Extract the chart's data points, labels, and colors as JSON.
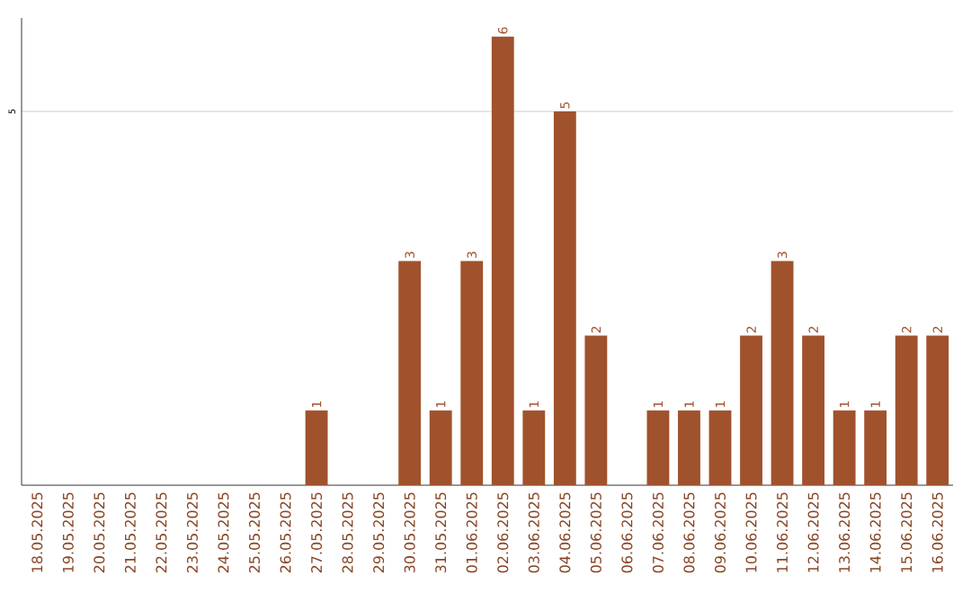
{
  "chart_data": {
    "type": "bar",
    "categories": [
      "18.05.2025",
      "19.05.2025",
      "20.05.2025",
      "21.05.2025",
      "22.05.2025",
      "23.05.2025",
      "24.05.2025",
      "25.05.2025",
      "26.05.2025",
      "27.05.2025",
      "28.05.2025",
      "29.05.2025",
      "30.05.2025",
      "31.05.2025",
      "01.06.2025",
      "02.06.2025",
      "03.06.2025",
      "04.06.2025",
      "05.06.2025",
      "06.06.2025",
      "07.06.2025",
      "08.06.2025",
      "09.06.2025",
      "10.06.2025",
      "11.06.2025",
      "12.06.2025",
      "13.06.2025",
      "14.06.2025",
      "15.06.2025",
      "16.06.2025"
    ],
    "values": [
      0,
      0,
      0,
      0,
      0,
      0,
      0,
      0,
      0,
      1,
      0,
      0,
      3,
      1,
      3,
      6,
      1,
      5,
      2,
      0,
      1,
      1,
      1,
      2,
      3,
      2,
      1,
      1,
      2,
      2
    ],
    "value_labels": [
      null,
      null,
      null,
      null,
      null,
      null,
      null,
      null,
      null,
      "1",
      null,
      null,
      "3",
      "1",
      "3",
      "6",
      "1",
      "5",
      "2",
      null,
      "1",
      "1",
      "1",
      "2",
      "3",
      "2",
      "1",
      "1",
      "2",
      "2"
    ],
    "color": "#a0522d",
    "ylim": [
      0,
      6.25
    ],
    "yticks": [
      5
    ],
    "grid": "y"
  }
}
